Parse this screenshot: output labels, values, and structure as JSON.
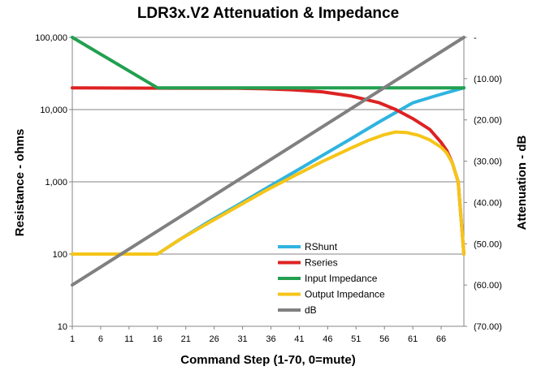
{
  "chart_data": {
    "type": "line",
    "title": "LDR3x.V2 Attenuation & Impedance",
    "xlabel": "Command Step (1-70,  0=mute)",
    "ylabel": "Resistance - ohms",
    "y2label": "Attenuation - dB",
    "xlim": [
      1,
      70
    ],
    "ylim": [
      10,
      100000
    ],
    "y_scale": "log",
    "y2lim": [
      -70,
      0
    ],
    "x_ticks": [
      "1",
      "6",
      "11",
      "16",
      "21",
      "26",
      "31",
      "36",
      "41",
      "46",
      "51",
      "56",
      "61",
      "66"
    ],
    "y_ticks": [
      "100,000",
      "10,000",
      "1,000",
      "100",
      "10"
    ],
    "y2_ticks": [
      "-",
      "(10.00)",
      "(20.00)",
      "(30.00)",
      "(40.00)",
      "(50.00)",
      "(60.00)",
      "(70.00)"
    ],
    "legend_position": "center-bottom",
    "grid": "horizontal",
    "series": [
      {
        "name": "RShunt",
        "axis": "left",
        "color": "#2fb4e0",
        "x": [
          1,
          16,
          20,
          25,
          30,
          35,
          40,
          45,
          50,
          55,
          60,
          61,
          65,
          70
        ],
        "y": [
          100,
          100,
          160,
          280,
          470,
          800,
          1350,
          2300,
          3900,
          6700,
          11200,
          12400,
          15500,
          20000
        ]
      },
      {
        "name": "Rseries",
        "axis": "left",
        "color": "#dd2222",
        "x": [
          1,
          16,
          30,
          35,
          40,
          45,
          50,
          55,
          58,
          61,
          64,
          66,
          67,
          68,
          69,
          70
        ],
        "y": [
          20000,
          19800,
          19700,
          19400,
          18700,
          17600,
          15500,
          12500,
          10000,
          7500,
          5300,
          3500,
          2700,
          1800,
          1000,
          100
        ]
      },
      {
        "name": "Input Impedance",
        "axis": "left",
        "color": "#22a050",
        "x": [
          1,
          16,
          70
        ],
        "y": [
          100000,
          20000,
          20000
        ]
      },
      {
        "name": "Output Impedance",
        "axis": "left",
        "color": "#f5c518",
        "x": [
          1,
          16,
          20,
          25,
          30,
          35,
          40,
          45,
          50,
          53,
          56,
          58,
          60,
          62,
          64,
          66,
          67,
          68,
          69,
          70
        ],
        "y": [
          100,
          100,
          160,
          270,
          450,
          750,
          1200,
          1900,
          2900,
          3700,
          4500,
          4900,
          4800,
          4400,
          3800,
          3000,
          2500,
          1800,
          1000,
          100
        ]
      },
      {
        "name": "dB",
        "axis": "right",
        "color": "#808080",
        "x": [
          1,
          70
        ],
        "y": [
          -60,
          0
        ]
      }
    ]
  }
}
